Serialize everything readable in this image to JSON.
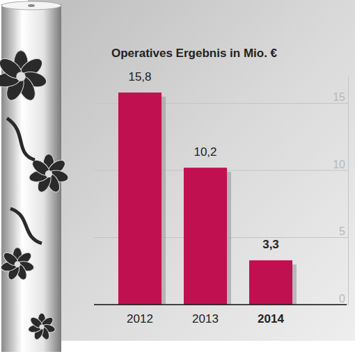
{
  "chart_data": {
    "type": "bar",
    "title": "Operatives Ergebnis in Mio. €",
    "categories": [
      "2012",
      "2013",
      "2014"
    ],
    "values": [
      15.8,
      10.2,
      3.3
    ],
    "value_labels": [
      "15,8",
      "10,2",
      "3,3"
    ],
    "color": "#c0104f",
    "ylim": [
      0,
      17
    ],
    "yticks": [
      0,
      5,
      10,
      15
    ],
    "grid": true,
    "data_labels": true
  }
}
